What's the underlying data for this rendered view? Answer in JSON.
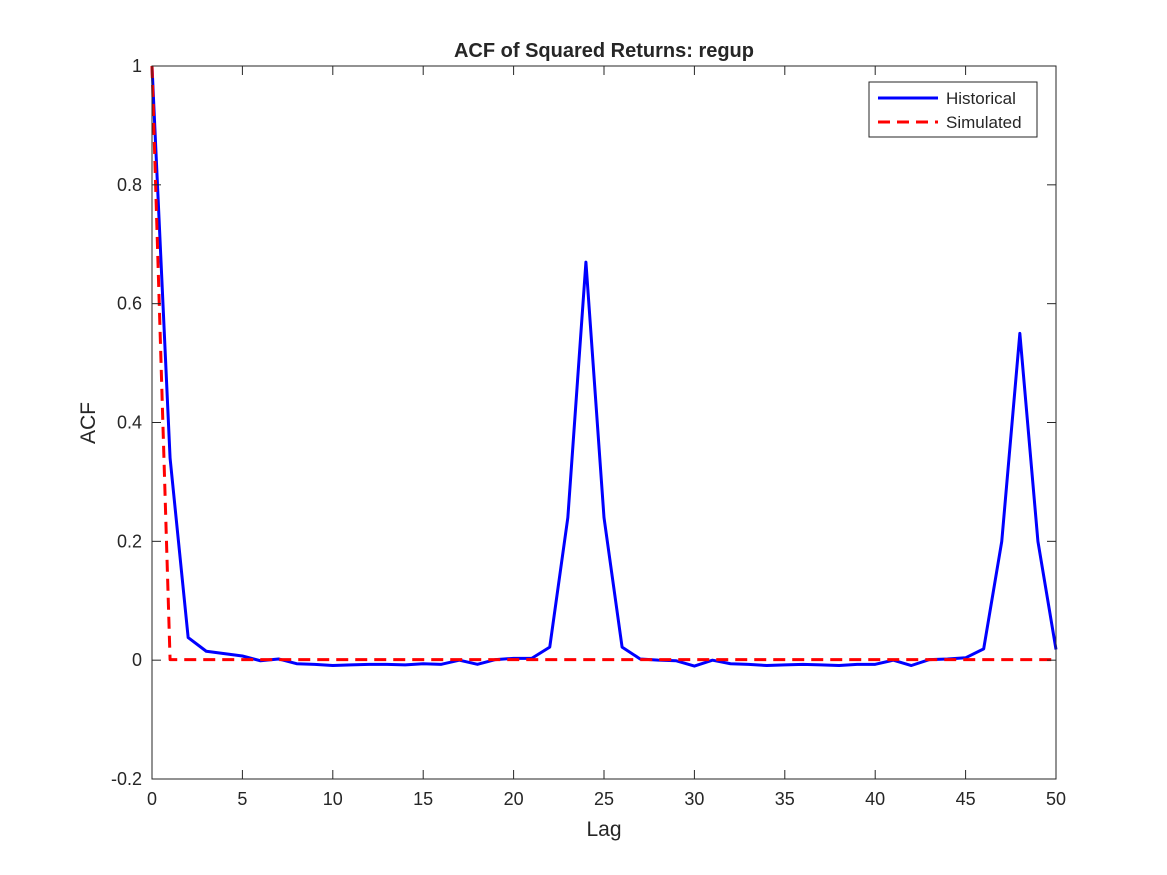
{
  "chart_data": {
    "type": "line",
    "title": "ACF of Squared Returns: regup",
    "xlabel": "Lag",
    "ylabel": "ACF",
    "xlim": [
      0,
      50
    ],
    "ylim": [
      -0.2,
      1
    ],
    "xticks": [
      0,
      5,
      10,
      15,
      20,
      25,
      30,
      35,
      40,
      45,
      50
    ],
    "yticks": [
      -0.2,
      0,
      0.2,
      0.4,
      0.6,
      0.8,
      1
    ],
    "ytick_labels": [
      "-0.2",
      "0",
      "0.2",
      "0.4",
      "0.6",
      "0.8",
      "1"
    ],
    "grid": false,
    "legend_position": "top-right",
    "series": [
      {
        "name": "Historical",
        "color": "#0000ff",
        "style": "solid",
        "x": [
          0,
          1,
          2,
          3,
          4,
          5,
          6,
          7,
          8,
          9,
          10,
          11,
          12,
          13,
          14,
          15,
          16,
          17,
          18,
          19,
          20,
          21,
          22,
          23,
          24,
          25,
          26,
          27,
          28,
          29,
          30,
          31,
          32,
          33,
          34,
          35,
          36,
          37,
          38,
          39,
          40,
          41,
          42,
          43,
          44,
          45,
          46,
          47,
          48,
          49,
          50
        ],
        "values": [
          1,
          0.34,
          0.038,
          0.015,
          0.011,
          0.007,
          -0.001,
          0.002,
          -0.006,
          -0.007,
          -0.009,
          -0.008,
          -0.007,
          -0.007,
          -0.008,
          -0.006,
          -0.007,
          0.0,
          -0.007,
          0.001,
          0.003,
          0.003,
          0.022,
          0.24,
          0.67,
          0.24,
          0.022,
          0.002,
          0.0,
          -0.001,
          -0.01,
          0.0,
          -0.006,
          -0.007,
          -0.009,
          -0.008,
          -0.007,
          -0.008,
          -0.009,
          -0.007,
          -0.007,
          0.0,
          -0.009,
          0.001,
          0.002,
          0.004,
          0.019,
          0.2,
          0.55,
          0.2,
          0.018
        ]
      },
      {
        "name": "Simulated",
        "color": "#ff0000",
        "style": "dashed",
        "x": [
          0,
          1,
          2,
          3,
          4,
          5,
          6,
          7,
          8,
          9,
          10,
          11,
          12,
          13,
          14,
          15,
          16,
          17,
          18,
          19,
          20,
          21,
          22,
          23,
          24,
          25,
          26,
          27,
          28,
          29,
          30,
          31,
          32,
          33,
          34,
          35,
          36,
          37,
          38,
          39,
          40,
          41,
          42,
          43,
          44,
          45,
          46,
          47,
          48,
          49,
          50
        ],
        "values": [
          1,
          0.001,
          0.001,
          0.001,
          0.001,
          0.001,
          0.001,
          0.001,
          0.001,
          0.001,
          0.001,
          0.001,
          0.001,
          0.001,
          0.001,
          0.001,
          0.001,
          0.001,
          0.001,
          0.001,
          0.001,
          0.001,
          0.001,
          0.001,
          0.001,
          0.001,
          0.001,
          0.001,
          0.001,
          0.001,
          0.001,
          0.001,
          0.001,
          0.001,
          0.001,
          0.001,
          0.001,
          0.001,
          0.001,
          0.001,
          0.001,
          0.001,
          0.001,
          0.001,
          0.001,
          0.001,
          0.001,
          0.001,
          0.001,
          0.001,
          0.001
        ]
      }
    ]
  }
}
